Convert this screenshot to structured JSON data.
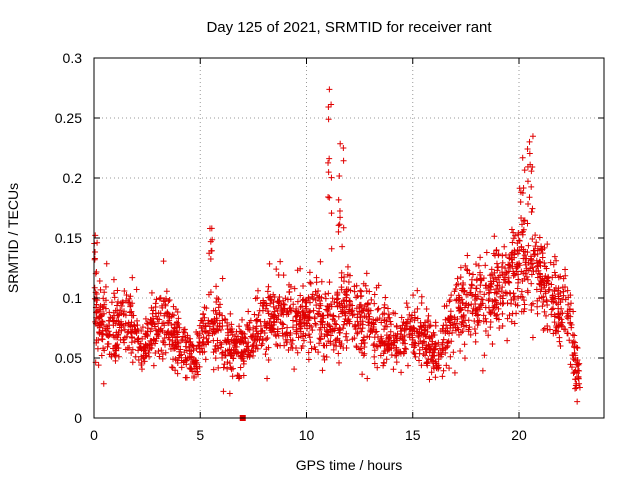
{
  "chart_data": {
    "type": "scatter",
    "title": "Day 125 of 2021, SRMTID for receiver rant",
    "xlabel": "GPS time / hours",
    "ylabel": "SRMTID / TECUs",
    "xlim": [
      0,
      24
    ],
    "ylim": [
      0,
      0.3
    ],
    "x_ticks": [
      "0",
      "5",
      "10",
      "15",
      "20"
    ],
    "y_ticks": [
      "0",
      "0.05",
      "0.1",
      "0.15",
      "0.2",
      "0.25",
      "0.3"
    ],
    "grid": true,
    "marker_color": "#e00000",
    "marker": "plus",
    "special_points": [
      {
        "x": 7.0,
        "y": 0.0,
        "marker": "square"
      }
    ],
    "envelope": [
      {
        "x": 0.0,
        "y": 0.085,
        "spread": 0.03
      },
      {
        "x": 0.3,
        "y": 0.075,
        "spread": 0.03
      },
      {
        "x": 1.0,
        "y": 0.07,
        "spread": 0.025
      },
      {
        "x": 1.6,
        "y": 0.09,
        "spread": 0.03
      },
      {
        "x": 2.3,
        "y": 0.055,
        "spread": 0.02
      },
      {
        "x": 3.0,
        "y": 0.08,
        "spread": 0.03
      },
      {
        "x": 3.6,
        "y": 0.075,
        "spread": 0.025
      },
      {
        "x": 4.3,
        "y": 0.055,
        "spread": 0.02
      },
      {
        "x": 4.8,
        "y": 0.05,
        "spread": 0.02
      },
      {
        "x": 5.5,
        "y": 0.085,
        "spread": 0.03
      },
      {
        "x": 6.2,
        "y": 0.065,
        "spread": 0.025
      },
      {
        "x": 6.8,
        "y": 0.055,
        "spread": 0.02
      },
      {
        "x": 7.5,
        "y": 0.07,
        "spread": 0.025
      },
      {
        "x": 8.3,
        "y": 0.085,
        "spread": 0.03
      },
      {
        "x": 9.0,
        "y": 0.085,
        "spread": 0.03
      },
      {
        "x": 9.7,
        "y": 0.08,
        "spread": 0.03
      },
      {
        "x": 10.5,
        "y": 0.09,
        "spread": 0.03
      },
      {
        "x": 11.2,
        "y": 0.075,
        "spread": 0.03
      },
      {
        "x": 11.8,
        "y": 0.09,
        "spread": 0.03
      },
      {
        "x": 12.5,
        "y": 0.085,
        "spread": 0.03
      },
      {
        "x": 13.3,
        "y": 0.075,
        "spread": 0.025
      },
      {
        "x": 14.0,
        "y": 0.065,
        "spread": 0.02
      },
      {
        "x": 14.8,
        "y": 0.07,
        "spread": 0.025
      },
      {
        "x": 15.5,
        "y": 0.07,
        "spread": 0.025
      },
      {
        "x": 16.2,
        "y": 0.05,
        "spread": 0.02
      },
      {
        "x": 17.0,
        "y": 0.085,
        "spread": 0.03
      },
      {
        "x": 17.7,
        "y": 0.1,
        "spread": 0.03
      },
      {
        "x": 18.4,
        "y": 0.1,
        "spread": 0.035
      },
      {
        "x": 19.1,
        "y": 0.11,
        "spread": 0.035
      },
      {
        "x": 19.8,
        "y": 0.12,
        "spread": 0.035
      },
      {
        "x": 20.5,
        "y": 0.135,
        "spread": 0.04
      },
      {
        "x": 21.2,
        "y": 0.115,
        "spread": 0.035
      },
      {
        "x": 21.8,
        "y": 0.09,
        "spread": 0.03
      },
      {
        "x": 22.3,
        "y": 0.09,
        "spread": 0.03
      },
      {
        "x": 22.7,
        "y": 0.045,
        "spread": 0.02
      },
      {
        "x": 22.9,
        "y": 0.035,
        "spread": 0.015
      }
    ],
    "samples_per_hour": 96,
    "bursts": [
      {
        "x_from": 0.0,
        "x_to": 0.15,
        "y_min": 0.1,
        "y_max": 0.167,
        "count": 8
      },
      {
        "x_from": 5.4,
        "x_to": 5.6,
        "y_min": 0.11,
        "y_max": 0.167,
        "count": 8
      },
      {
        "x_from": 11.0,
        "x_to": 11.2,
        "y_min": 0.14,
        "y_max": 0.275,
        "count": 12
      },
      {
        "x_from": 11.5,
        "x_to": 11.8,
        "y_min": 0.12,
        "y_max": 0.235,
        "count": 12
      },
      {
        "x_from": 20.0,
        "x_to": 20.3,
        "y_min": 0.15,
        "y_max": 0.21,
        "count": 10
      },
      {
        "x_from": 20.4,
        "x_to": 20.7,
        "y_min": 0.17,
        "y_max": 0.245,
        "count": 12
      }
    ]
  }
}
